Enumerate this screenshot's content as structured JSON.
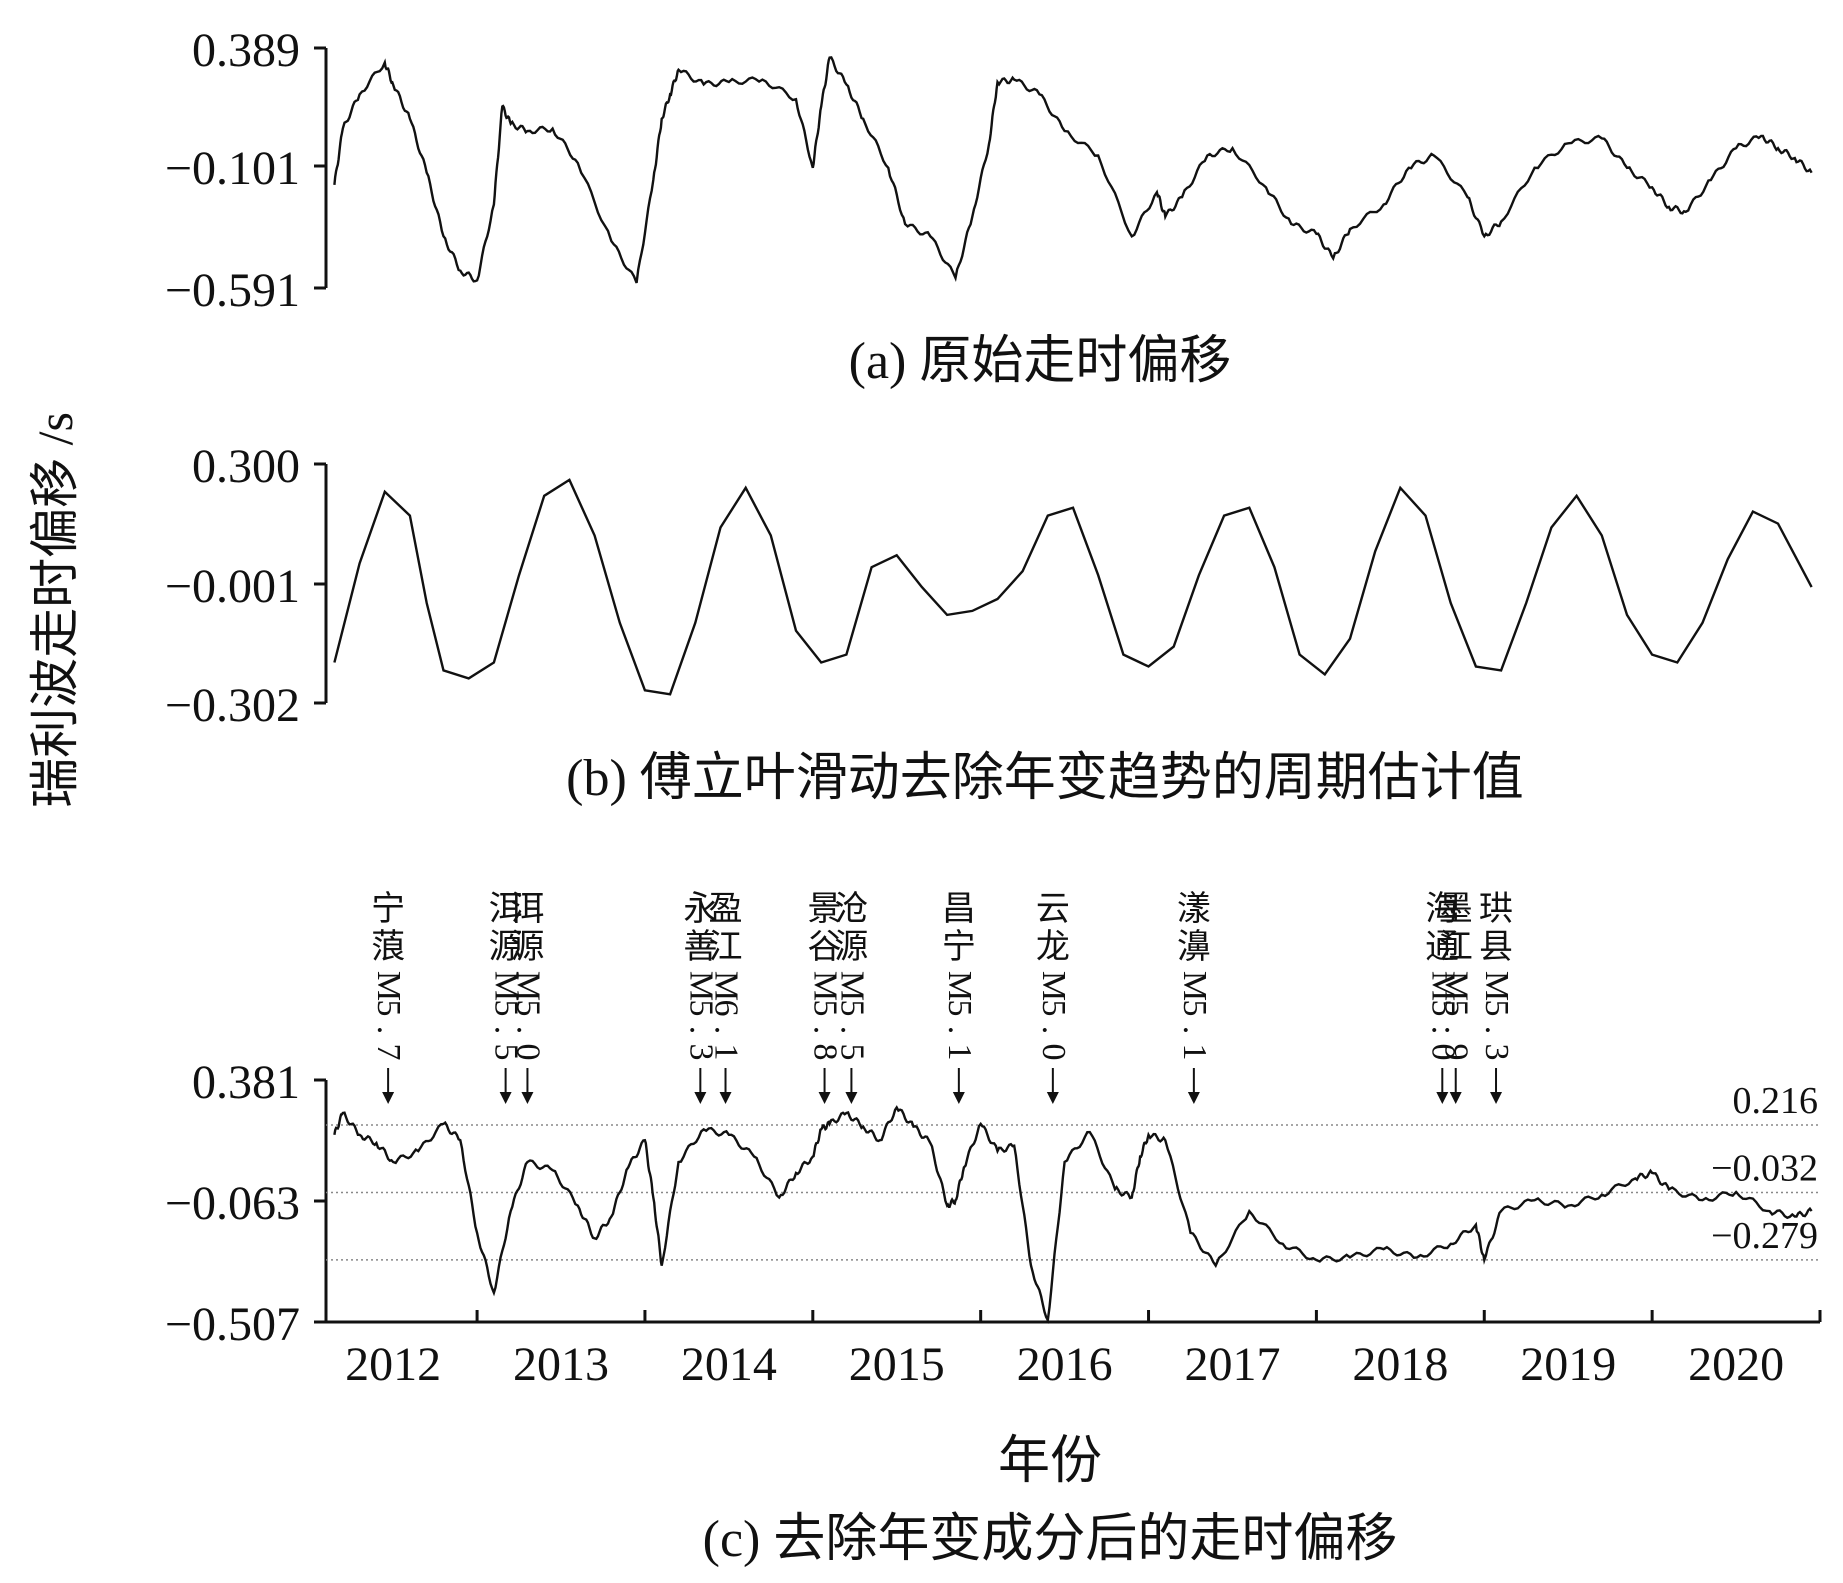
{
  "chart_data": [
    {
      "type": "line",
      "caption": "(a) 原始走时偏移",
      "yticks": [
        "0.389",
        "−0.101",
        "−0.591"
      ],
      "ylim": [
        -0.591,
        0.389
      ],
      "xlim": [
        2011.6,
        2020.5
      ],
      "series": [
        {
          "x": [
            2011.65,
            2011.7,
            2011.8,
            2011.95,
            2012.0,
            2012.1,
            2012.2,
            2012.3,
            2012.4,
            2012.5,
            2012.6,
            2012.65,
            2012.7,
            2012.8,
            2012.95,
            2013.1,
            2013.3,
            2013.45,
            2013.55,
            2013.6,
            2013.65,
            2013.7,
            2013.85,
            2014.0,
            2014.2,
            2014.4,
            2014.5,
            2014.55,
            2014.6,
            2014.7,
            2014.8,
            2014.95,
            2015.05,
            2015.2,
            2015.35,
            2015.45,
            2015.55,
            2015.6,
            2015.7,
            2015.85,
            2016.0,
            2016.2,
            2016.4,
            2016.55,
            2016.6,
            2016.7,
            2016.85,
            2017.0,
            2017.2,
            2017.35,
            2017.5,
            2017.6,
            2017.7,
            2017.9,
            2018.05,
            2018.2,
            2018.4,
            2018.5,
            2018.6,
            2018.8,
            2019.0,
            2019.2,
            2019.35,
            2019.5,
            2019.6,
            2019.7,
            2019.85,
            2020.0,
            2020.15,
            2020.25,
            2020.35,
            2020.45
          ],
          "y": [
            -0.17,
            0.06,
            0.2,
            0.33,
            0.24,
            0.1,
            -0.12,
            -0.38,
            -0.52,
            -0.56,
            -0.25,
            0.15,
            0.08,
            0.05,
            0.06,
            -0.08,
            -0.4,
            -0.57,
            -0.15,
            0.1,
            0.2,
            0.3,
            0.24,
            0.25,
            0.26,
            0.18,
            -0.1,
            0.15,
            0.35,
            0.24,
            0.1,
            -0.1,
            -0.33,
            -0.38,
            -0.55,
            -0.3,
            0.0,
            0.25,
            0.26,
            0.2,
            0.05,
            -0.05,
            -0.38,
            -0.2,
            -0.3,
            -0.22,
            -0.05,
            -0.02,
            -0.18,
            -0.33,
            -0.37,
            -0.47,
            -0.35,
            -0.25,
            -0.1,
            -0.05,
            -0.22,
            -0.38,
            -0.32,
            -0.1,
            0.0,
            0.02,
            -0.1,
            -0.18,
            -0.26,
            -0.28,
            -0.15,
            -0.02,
            0.03,
            -0.02,
            -0.06,
            -0.12
          ]
        }
      ]
    },
    {
      "type": "line",
      "caption": "(b) 傅立叶滑动去除年变趋势的周期估计值",
      "yticks": [
        "0.300",
        "−0.001",
        "−0.302"
      ],
      "ylim": [
        -0.302,
        0.3
      ],
      "xlim": [
        2011.6,
        2020.5
      ],
      "series": [
        {
          "x": [
            2011.65,
            2011.8,
            2011.95,
            2012.1,
            2012.2,
            2012.3,
            2012.45,
            2012.6,
            2012.75,
            2012.9,
            2013.05,
            2013.2,
            2013.35,
            2013.5,
            2013.65,
            2013.8,
            2013.95,
            2014.1,
            2014.25,
            2014.4,
            2014.55,
            2014.7,
            2014.85,
            2015.0,
            2015.15,
            2015.3,
            2015.45,
            2015.6,
            2015.75,
            2015.9,
            2016.05,
            2016.2,
            2016.35,
            2016.5,
            2016.65,
            2016.8,
            2016.95,
            2017.1,
            2017.25,
            2017.4,
            2017.55,
            2017.7,
            2017.85,
            2018.0,
            2018.15,
            2018.3,
            2018.45,
            2018.6,
            2018.75,
            2018.9,
            2019.05,
            2019.2,
            2019.35,
            2019.5,
            2019.65,
            2019.8,
            2019.95,
            2020.1,
            2020.25,
            2020.35,
            2020.45
          ],
          "y": [
            -0.2,
            0.05,
            0.23,
            0.17,
            -0.05,
            -0.22,
            -0.24,
            -0.2,
            0.02,
            0.22,
            0.26,
            0.12,
            -0.1,
            -0.27,
            -0.28,
            -0.1,
            0.14,
            0.24,
            0.12,
            -0.12,
            -0.2,
            -0.18,
            0.04,
            0.07,
            -0.01,
            -0.08,
            -0.07,
            -0.04,
            0.03,
            0.17,
            0.19,
            0.02,
            -0.18,
            -0.21,
            -0.16,
            0.02,
            0.17,
            0.19,
            0.04,
            -0.18,
            -0.23,
            -0.14,
            0.08,
            0.24,
            0.17,
            -0.05,
            -0.21,
            -0.22,
            -0.05,
            0.14,
            0.22,
            0.12,
            -0.08,
            -0.18,
            -0.2,
            -0.1,
            0.06,
            0.18,
            0.15,
            0.07,
            -0.01
          ]
        }
      ]
    },
    {
      "type": "line",
      "caption": "(c) 去除年变成分后的走时偏移",
      "yticks": [
        "0.381",
        "−0.063",
        "−0.507"
      ],
      "ylim": [
        -0.507,
        0.381
      ],
      "xlim": [
        2011.6,
        2020.5
      ],
      "x_ticks": [
        "2012",
        "2013",
        "2014",
        "2015",
        "2016",
        "2017",
        "2018",
        "2019",
        "2020"
      ],
      "xlabel": "年份",
      "thresholds": [
        {
          "label": "0.216",
          "value": 0.216
        },
        {
          "label": "−0.032",
          "value": -0.032
        },
        {
          "label": "−0.279",
          "value": -0.279
        }
      ],
      "series": [
        {
          "x": [
            2011.65,
            2011.7,
            2011.8,
            2011.9,
            2012.0,
            2012.15,
            2012.3,
            2012.4,
            2012.5,
            2012.6,
            2012.7,
            2012.8,
            2012.95,
            2013.1,
            2013.2,
            2013.3,
            2013.4,
            2013.5,
            2013.55,
            2013.6,
            2013.7,
            2013.85,
            2014.0,
            2014.15,
            2014.3,
            2014.4,
            2014.5,
            2014.55,
            2014.6,
            2014.7,
            2014.8,
            2014.9,
            2015.0,
            2015.1,
            2015.2,
            2015.3,
            2015.35,
            2015.4,
            2015.5,
            2015.6,
            2015.7,
            2015.8,
            2015.9,
            2016.0,
            2016.15,
            2016.3,
            2016.4,
            2016.45,
            2016.5,
            2016.6,
            2016.75,
            2016.9,
            2017.1,
            2017.3,
            2017.5,
            2017.7,
            2017.9,
            2018.1,
            2018.3,
            2018.45,
            2018.5,
            2018.6,
            2018.8,
            2019.0,
            2019.2,
            2019.4,
            2019.5,
            2019.6,
            2019.8,
            2020.0,
            2020.2,
            2020.35,
            2020.45
          ],
          "y": [
            0.18,
            0.26,
            0.18,
            0.15,
            0.08,
            0.12,
            0.22,
            0.16,
            -0.18,
            -0.4,
            -0.1,
            0.08,
            0.05,
            -0.08,
            -0.2,
            -0.12,
            0.06,
            0.16,
            -0.05,
            -0.3,
            0.08,
            0.2,
            0.18,
            0.1,
            -0.05,
            0.04,
            0.1,
            0.2,
            0.22,
            0.26,
            0.21,
            0.16,
            0.28,
            0.21,
            0.15,
            -0.08,
            -0.06,
            0.06,
            0.22,
            0.12,
            0.14,
            -0.3,
            -0.5,
            0.08,
            0.19,
            -0.02,
            -0.05,
            0.1,
            0.18,
            0.16,
            -0.18,
            -0.3,
            -0.1,
            -0.22,
            -0.28,
            -0.27,
            -0.24,
            -0.27,
            -0.22,
            -0.15,
            -0.28,
            -0.1,
            -0.06,
            -0.08,
            -0.04,
            0.02,
            0.04,
            -0.02,
            -0.06,
            -0.03,
            -0.1,
            -0.12,
            -0.1
          ]
        }
      ],
      "events": [
        {
          "place": "宁蒗",
          "mag": "M5.7",
          "x": 2011.97
        },
        {
          "place": "洱源",
          "mag": "M5.5",
          "x": 2012.67
        },
        {
          "place": "洱源",
          "mag": "M5.0",
          "x": 2012.8
        },
        {
          "place": "永善",
          "mag": "M5.3",
          "x": 2013.83
        },
        {
          "place": "盈江",
          "mag": "M6.1",
          "x": 2013.98
        },
        {
          "place": "景谷",
          "mag": "M5.8",
          "x": 2014.57
        },
        {
          "place": "沧源",
          "mag": "M5.5",
          "x": 2014.73
        },
        {
          "place": "昌宁",
          "mag": "M5.1",
          "x": 2015.37
        },
        {
          "place": "云龙",
          "mag": "M5.0",
          "x": 2015.93
        },
        {
          "place": "漾濞",
          "mag": "M5.1",
          "x": 2016.77
        },
        {
          "place": "海通",
          "mag": "M5.0",
          "x": 2018.25
        },
        {
          "place": "墨江",
          "mag": "M5.9",
          "x": 2018.33
        },
        {
          "place": "珙县",
          "mag": "M5.3",
          "x": 2018.57
        }
      ]
    }
  ],
  "shared_ylabel": "瑞利波走时偏移 /s"
}
